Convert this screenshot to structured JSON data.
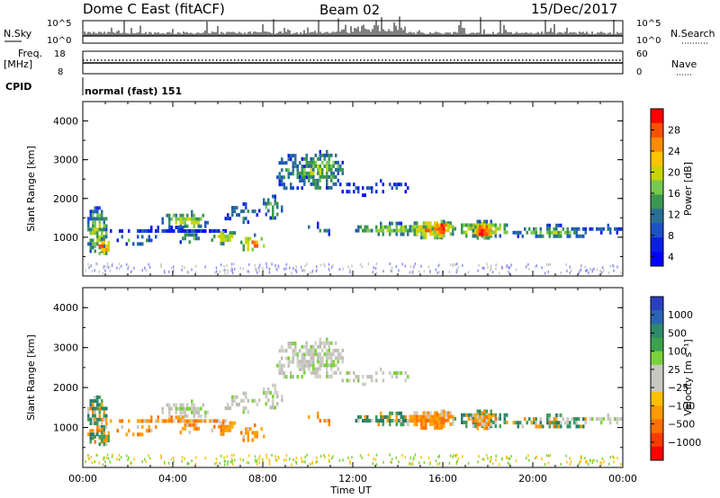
{
  "header": {
    "station": "Dome C East (fitACF)",
    "beam": "Beam 02",
    "date": "15/Dec/2017"
  },
  "sky_panel": {
    "left_label": "N.Sky",
    "right_label": "N.Search",
    "left_ticks": [
      "10^5",
      "10^0"
    ],
    "right_ticks": [
      "10^5",
      "10^0"
    ]
  },
  "freq_panel": {
    "left_label": "Freq.",
    "left_unit": "[MHz]",
    "right_label": "Nave",
    "left_ticks": [
      "18",
      "8"
    ],
    "right_ticks": [
      "60",
      "0"
    ]
  },
  "cpid": {
    "label": "CPID",
    "value": "normal (fast) 151"
  },
  "power_colorbar": {
    "label": "Power [dB]",
    "ticks": [
      "28",
      "24",
      "20",
      "16",
      "12",
      "8",
      "4"
    ],
    "colors": [
      "#ff0000",
      "#ff5000",
      "#ff8c00",
      "#ffc400",
      "#c8d600",
      "#78c850",
      "#3c9650",
      "#2a6e96",
      "#1c50c8",
      "#0a1ee6",
      "#0000ff"
    ]
  },
  "velocity_colorbar": {
    "label": "Velocity [m s⁻¹]",
    "ticks": [
      "1000",
      "500",
      "100",
      "25",
      "−25",
      "−100",
      "−500",
      "−1000"
    ],
    "colors": [
      "#2a40c0",
      "#2a64b4",
      "#2e8a6a",
      "#3aa24e",
      "#7ad23a",
      "#c8c8c0",
      "#c8c8c0",
      "#ffc000",
      "#ff9a00",
      "#ff7000",
      "#ff3a00",
      "#ff0000"
    ]
  },
  "chart_data": [
    {
      "type": "heatmap",
      "name": "power",
      "ylabel": "Slant Range [km]",
      "xlabel": "",
      "ylim": [
        0,
        4500
      ],
      "xlim": [
        0,
        24
      ],
      "yticks": [
        "1000",
        "2000",
        "3000",
        "4000"
      ],
      "xticks": [
        "00:00",
        "04:00",
        "08:00",
        "12:00",
        "16:00",
        "20:00",
        "00:00"
      ]
    },
    {
      "type": "heatmap",
      "name": "velocity",
      "ylabel": "Slant Range [km]",
      "xlabel": "Time UT",
      "ylim": [
        0,
        4500
      ],
      "xlim": [
        0,
        24
      ],
      "yticks": [
        "1000",
        "2000",
        "3000",
        "4000"
      ],
      "xticks": [
        "00:00",
        "04:00",
        "08:00",
        "12:00",
        "16:00",
        "20:00",
        "00:00"
      ]
    }
  ]
}
